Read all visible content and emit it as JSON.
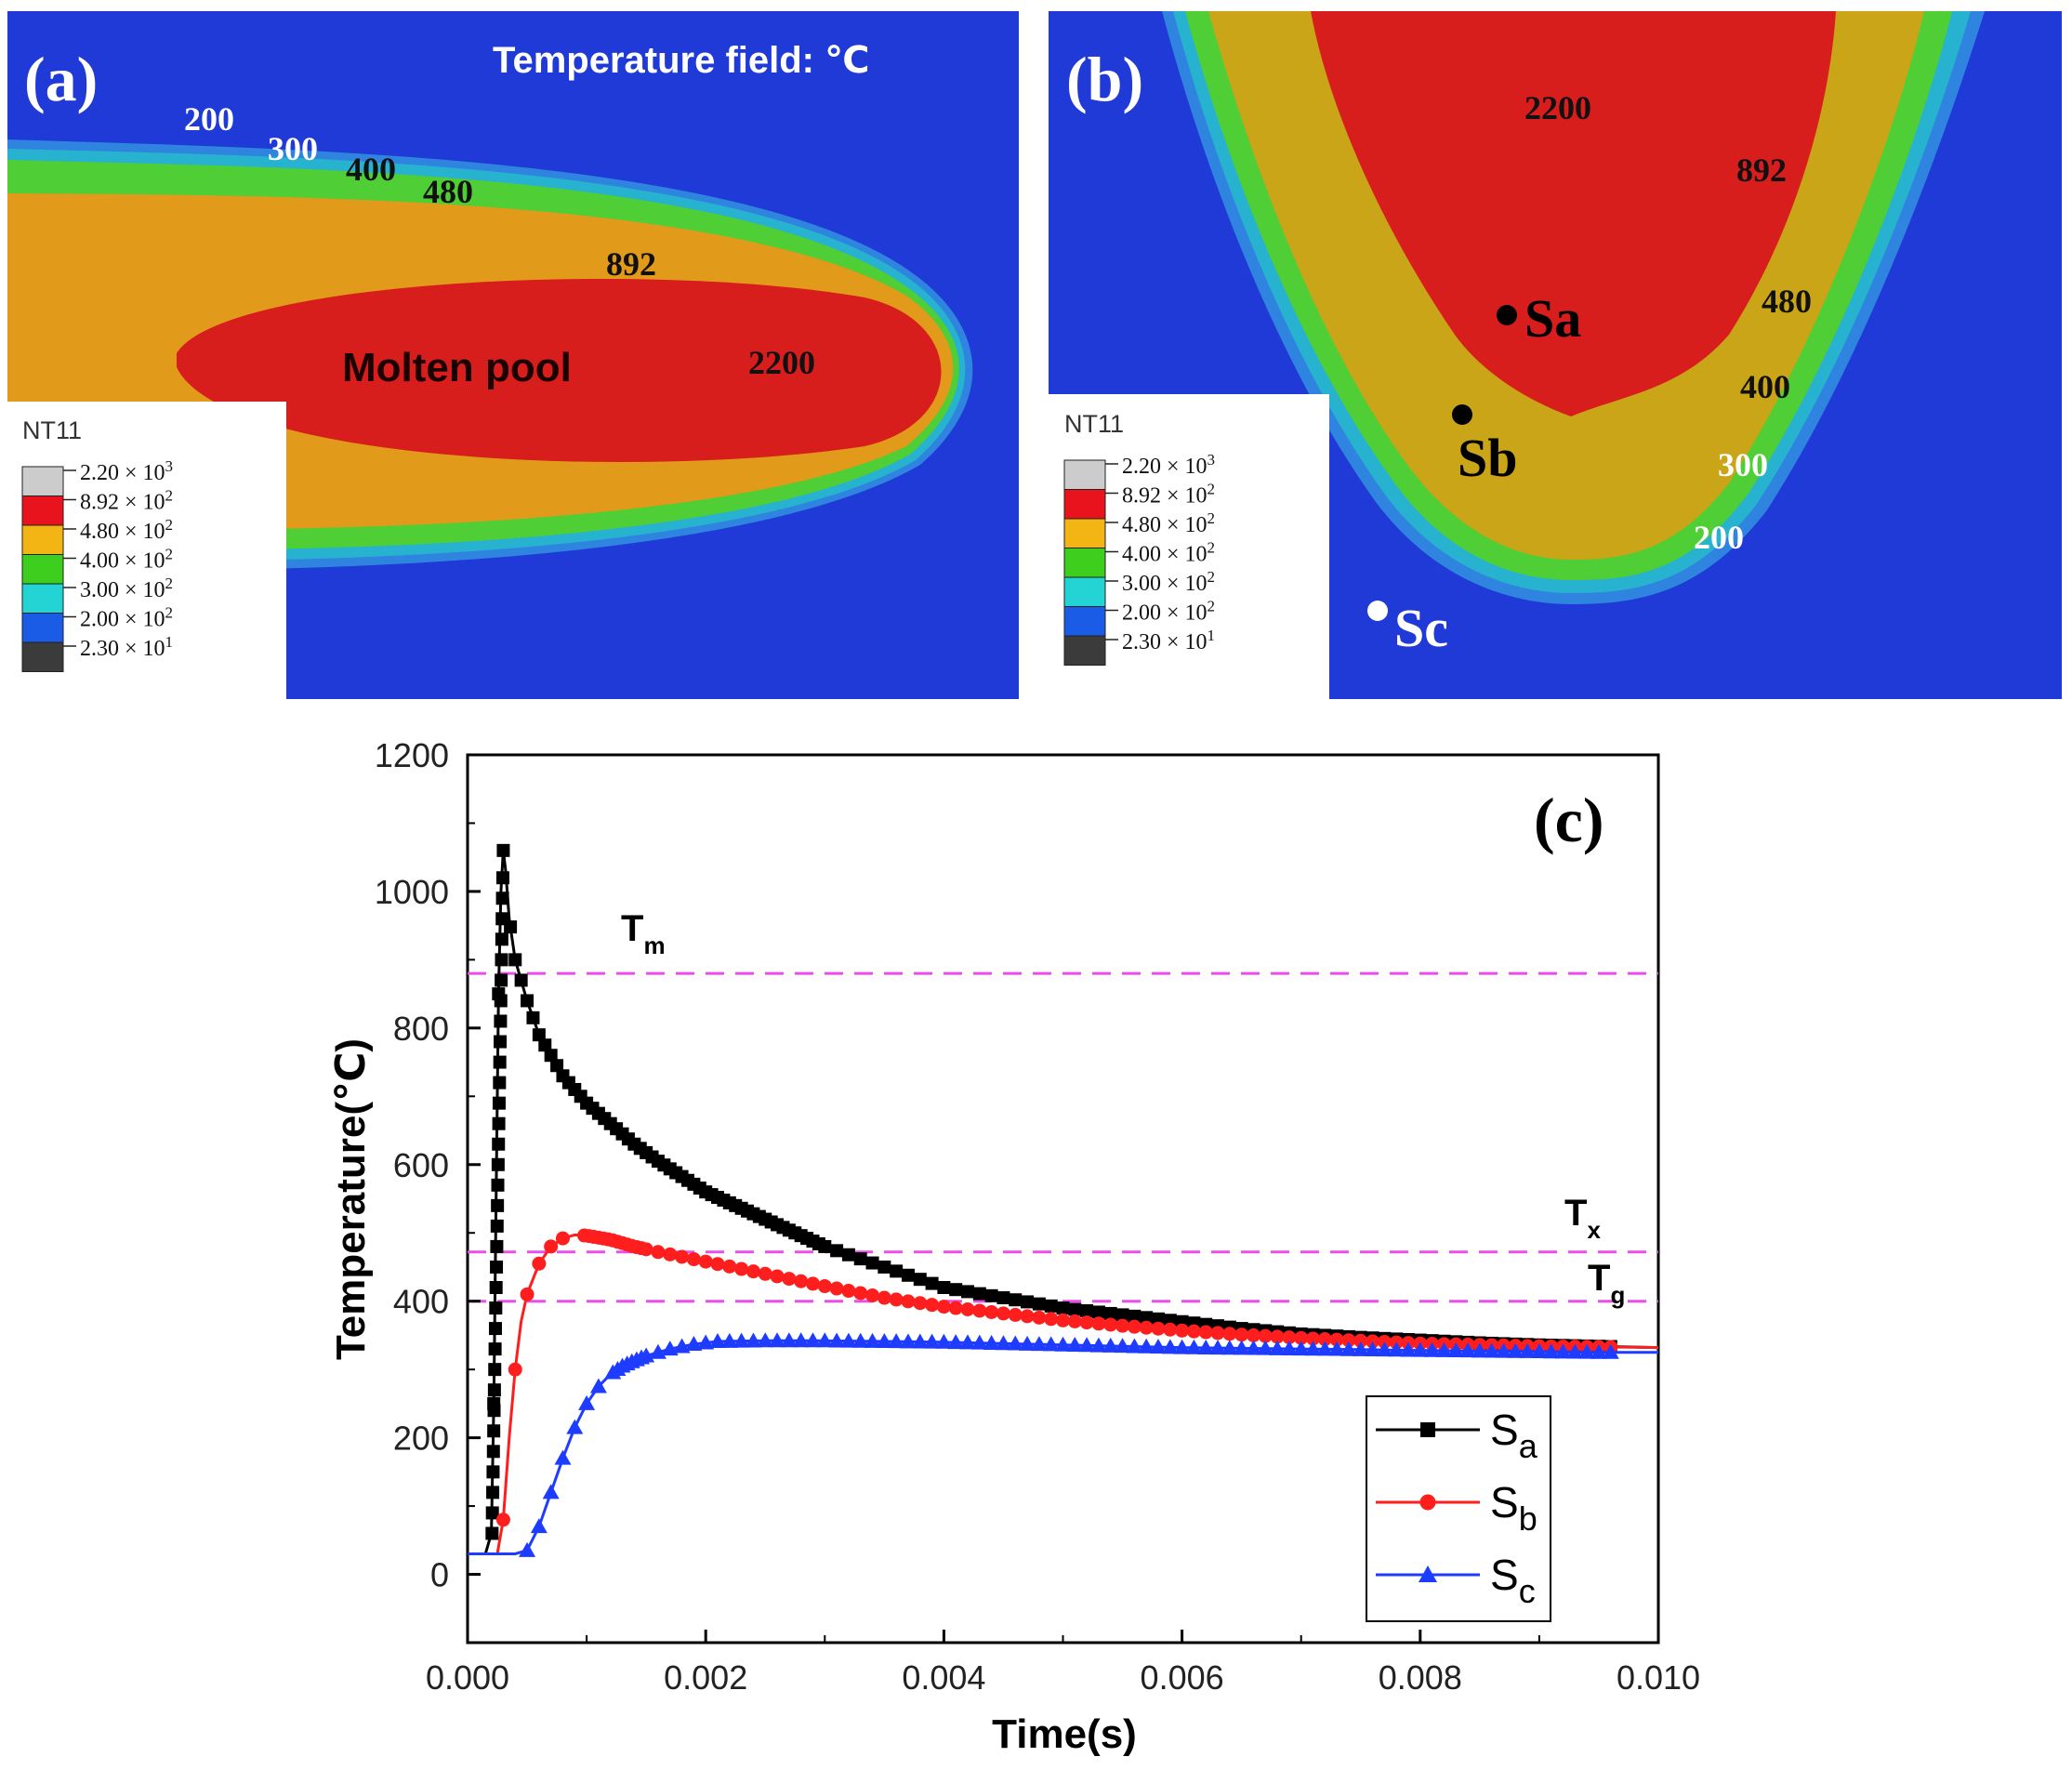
{
  "panel_a": {
    "label": "(a)",
    "title": "Temperature field: ℃",
    "pool_label": "Molten pool",
    "contour_labels": [
      "200",
      "300",
      "400",
      "480",
      "892",
      "2200"
    ]
  },
  "panel_b": {
    "label": "(b)",
    "contour_labels": [
      "2200",
      "892",
      "480",
      "400",
      "300",
      "200"
    ],
    "points": [
      "Sa",
      "Sb",
      "Sc"
    ]
  },
  "legend_field": {
    "title": "NT11",
    "entries": [
      {
        "mant": "2.20 × 10",
        "exp": "3",
        "color": "#cccccc"
      },
      {
        "mant": "8.92 × 10",
        "exp": "2",
        "color": "#e8131c"
      },
      {
        "mant": "4.80 × 10",
        "exp": "2",
        "color": "#f2b513"
      },
      {
        "mant": "4.00 × 10",
        "exp": "2",
        "color": "#3ecf1e"
      },
      {
        "mant": "3.00 × 10",
        "exp": "2",
        "color": "#24d3d3"
      },
      {
        "mant": "2.00 × 10",
        "exp": "2",
        "color": "#1a5ce6"
      },
      {
        "mant": "2.30 × 10",
        "exp": "1",
        "color": "#3b3b3b"
      }
    ]
  },
  "colors": {
    "background": "#1f3ad6",
    "molten": "#d81d1d",
    "orange": "#e19a1a",
    "yellow": "#c9a517",
    "green": "#4fcf35",
    "cyan": "#27b3cf",
    "light_blue": "#2f84e0",
    "sa": "#000000",
    "sb": "#ff1e1e",
    "sc": "#1e3cff",
    "threshold": "#e94ee9"
  },
  "chart_data": {
    "type": "line",
    "panel_label": "(c)",
    "xlabel": "Time(s)",
    "ylabel": "Temperature(℃)",
    "xlim": [
      0,
      0.01
    ],
    "ylim": [
      -100,
      1200
    ],
    "xticks": [
      "0.000",
      "0.002",
      "0.004",
      "0.006",
      "0.008",
      "0.010"
    ],
    "yticks": [
      "0",
      "200",
      "400",
      "600",
      "800",
      "1000",
      "1200"
    ],
    "thresholds": [
      {
        "name": "T",
        "sub": "m",
        "value": 880
      },
      {
        "name": "T",
        "sub": "x",
        "value": 472
      },
      {
        "name": "T",
        "sub": "g",
        "value": 400
      }
    ],
    "series": [
      {
        "name": "S",
        "sub": "a",
        "x": [
          0.0,
          0.00015,
          0.0002,
          0.00022,
          0.00024,
          0.00026,
          0.00028,
          0.0003,
          0.00032,
          0.00035,
          0.0004,
          0.0005,
          0.0006,
          0.0008,
          0.001,
          0.0012,
          0.0014,
          0.0016,
          0.002,
          0.0025,
          0.003,
          0.0035,
          0.004,
          0.0045,
          0.005,
          0.0055,
          0.006,
          0.0065,
          0.007,
          0.0075,
          0.008,
          0.0085,
          0.009,
          0.0095,
          0.01
        ],
        "y": [
          30,
          30,
          60,
          250,
          550,
          850,
          1000,
          1060,
          1030,
          960,
          900,
          840,
          790,
          730,
          690,
          660,
          630,
          605,
          560,
          520,
          480,
          450,
          420,
          405,
          390,
          380,
          370,
          360,
          352,
          347,
          343,
          339,
          336,
          334,
          332
        ]
      },
      {
        "name": "S",
        "sub": "b",
        "x": [
          0.0,
          0.00025,
          0.0003,
          0.00035,
          0.0004,
          0.00045,
          0.0005,
          0.0006,
          0.0007,
          0.0008,
          0.0009,
          0.001,
          0.0012,
          0.0014,
          0.0016,
          0.0018,
          0.002,
          0.0025,
          0.003,
          0.0035,
          0.004,
          0.0045,
          0.005,
          0.0055,
          0.006,
          0.0065,
          0.007,
          0.0075,
          0.008,
          0.0085,
          0.009,
          0.0095,
          0.01
        ],
        "y": [
          30,
          30,
          80,
          200,
          300,
          370,
          410,
          455,
          480,
          492,
          497,
          496,
          490,
          480,
          472,
          465,
          458,
          440,
          422,
          405,
          392,
          382,
          372,
          364,
          357,
          351,
          346,
          342,
          338,
          336,
          334,
          333,
          332
        ]
      },
      {
        "name": "S",
        "sub": "c",
        "x": [
          0.0,
          0.0003,
          0.0004,
          0.0005,
          0.0006,
          0.0007,
          0.0008,
          0.0009,
          0.001,
          0.0011,
          0.0012,
          0.0013,
          0.0014,
          0.0015,
          0.0017,
          0.0019,
          0.0021,
          0.0025,
          0.003,
          0.0035,
          0.004,
          0.0045,
          0.005,
          0.0055,
          0.006,
          0.0065,
          0.007,
          0.0075,
          0.008,
          0.0085,
          0.009,
          0.0095,
          0.01
        ],
        "y": [
          30,
          30,
          30,
          35,
          70,
          120,
          170,
          215,
          250,
          275,
          293,
          305,
          313,
          320,
          330,
          337,
          341,
          342,
          342,
          341,
          340,
          338,
          336,
          334,
          332,
          331,
          330,
          329,
          328,
          327,
          326,
          325,
          325
        ]
      }
    ],
    "marker_x": {
      "a": [
        0.00036,
        0.0004,
        0.00045,
        0.0005,
        0.00055,
        0.0006,
        0.00065,
        0.0007,
        0.00075,
        0.0008,
        0.00085,
        0.0009,
        0.00095,
        0.001,
        0.00105,
        0.0011,
        0.00115,
        0.0012,
        0.00125,
        0.0013,
        0.00135,
        0.0014,
        0.00145,
        0.0015,
        0.00155,
        0.0016,
        0.00165,
        0.0017,
        0.00175,
        0.0018,
        0.00185,
        0.0019,
        0.00195,
        0.002,
        0.00205,
        0.0021,
        0.00215,
        0.0022,
        0.00225,
        0.0023,
        0.00235,
        0.0024,
        0.00245,
        0.0025,
        0.00255,
        0.0026,
        0.00265,
        0.0027,
        0.00275,
        0.0028,
        0.00285,
        0.0029,
        0.00295,
        0.003,
        0.0031,
        0.0032,
        0.0033,
        0.0034,
        0.0035,
        0.0036,
        0.0037,
        0.0038,
        0.0039,
        0.004,
        0.0041,
        0.0042,
        0.0043,
        0.0044,
        0.0045,
        0.0046,
        0.0047,
        0.0048,
        0.0049,
        0.005,
        0.0051,
        0.0052,
        0.0053,
        0.0054,
        0.0055,
        0.0056,
        0.0057,
        0.0058,
        0.0059,
        0.006,
        0.0061,
        0.0062,
        0.0063,
        0.0064,
        0.0065,
        0.0066,
        0.0067,
        0.0068,
        0.0069,
        0.007,
        0.0071,
        0.0072,
        0.0073,
        0.0074,
        0.0075,
        0.0076,
        0.0077,
        0.0078,
        0.0079,
        0.008,
        0.0081,
        0.0082,
        0.0083,
        0.0084,
        0.0085,
        0.0086,
        0.0087,
        0.0088,
        0.0089,
        0.009,
        0.0091,
        0.0092,
        0.0093,
        0.0094,
        0.0095,
        0.0096
      ],
      "b": [
        0.00098,
        0.00102,
        0.00106,
        0.0011,
        0.00114,
        0.00118,
        0.00122,
        0.00126,
        0.0013,
        0.00134,
        0.00138,
        0.00142,
        0.00146,
        0.0015,
        0.0016,
        0.0017,
        0.0018,
        0.0019,
        0.002,
        0.0021,
        0.0022,
        0.0023,
        0.0024,
        0.0025,
        0.0026,
        0.0027,
        0.0028,
        0.0029,
        0.003,
        0.0031,
        0.0032,
        0.0033,
        0.0034,
        0.0035,
        0.0036,
        0.0037,
        0.0038,
        0.0039,
        0.004,
        0.0041,
        0.0042,
        0.0043,
        0.0044,
        0.0045,
        0.0046,
        0.0047,
        0.0048,
        0.0049,
        0.005,
        0.0051,
        0.0052,
        0.0053,
        0.0054,
        0.0055,
        0.0056,
        0.0057,
        0.0058,
        0.0059,
        0.006,
        0.0061,
        0.0062,
        0.0063,
        0.0064,
        0.0065,
        0.0066,
        0.0067,
        0.0068,
        0.0069,
        0.007,
        0.0071,
        0.0072,
        0.0073,
        0.0074,
        0.0075,
        0.0076,
        0.0077,
        0.0078,
        0.0079,
        0.008,
        0.0081,
        0.0082,
        0.0083,
        0.0084,
        0.0085,
        0.0086,
        0.0087,
        0.0088,
        0.0089,
        0.009,
        0.0091,
        0.0092,
        0.0093,
        0.0094,
        0.0095,
        0.0096
      ],
      "c": [
        0.00122,
        0.00126,
        0.0013,
        0.00134,
        0.00138,
        0.00142,
        0.00146,
        0.0015,
        0.0016,
        0.0017,
        0.0018,
        0.0019,
        0.002,
        0.0021,
        0.0022,
        0.0023,
        0.0024,
        0.0025,
        0.0026,
        0.0027,
        0.0028,
        0.0029,
        0.003,
        0.0031,
        0.0032,
        0.0033,
        0.0034,
        0.0035,
        0.0036,
        0.0037,
        0.0038,
        0.0039,
        0.004,
        0.0041,
        0.0042,
        0.0043,
        0.0044,
        0.0045,
        0.0046,
        0.0047,
        0.0048,
        0.0049,
        0.005,
        0.0051,
        0.0052,
        0.0053,
        0.0054,
        0.0055,
        0.0056,
        0.0057,
        0.0058,
        0.0059,
        0.006,
        0.0061,
        0.0062,
        0.0063,
        0.0064,
        0.0065,
        0.0066,
        0.0067,
        0.0068,
        0.0069,
        0.007,
        0.0071,
        0.0072,
        0.0073,
        0.0074,
        0.0075,
        0.0076,
        0.0077,
        0.0078,
        0.0079,
        0.008,
        0.0081,
        0.0082,
        0.0083,
        0.0084,
        0.0085,
        0.0086,
        0.0087,
        0.0088,
        0.0089,
        0.009,
        0.0091,
        0.0092,
        0.0093,
        0.0094,
        0.0095,
        0.0096
      ]
    }
  }
}
